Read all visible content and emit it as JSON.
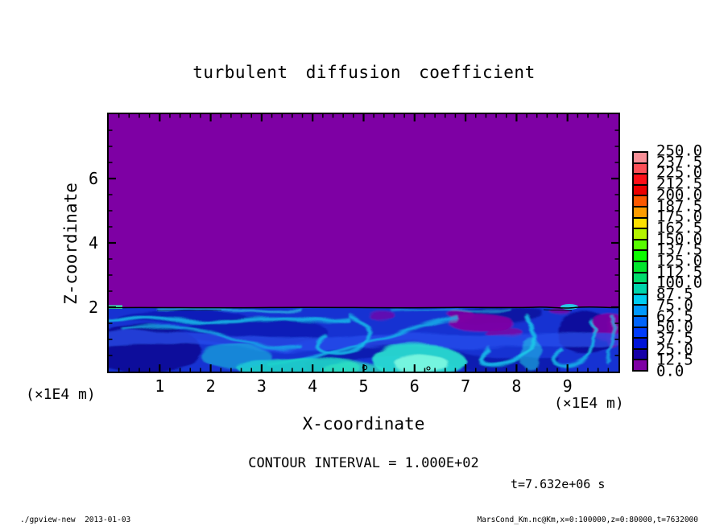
{
  "title": "turbulent diffusion coefficient",
  "axes": {
    "x": {
      "label": "X-coordinate",
      "units": "(×1E4 m)",
      "range": [
        0,
        10
      ],
      "ticks": [
        1,
        2,
        3,
        4,
        5,
        6,
        7,
        8,
        9
      ],
      "minor_step": 0.2
    },
    "y": {
      "label": "Z-coordinate",
      "units": "(×1E4 m)",
      "range": [
        0,
        8
      ],
      "ticks": [
        2,
        4,
        6
      ],
      "minor_step": 0.5
    }
  },
  "annotations": {
    "contour_interval": "CONTOUR INTERVAL = 1.000E+02",
    "time": "t=7.632e+06 s"
  },
  "footer": {
    "left": "./gpview-new  2013-01-03",
    "right": "MarsCond_Km.nc@Km,x=0:100000,z=0:80000,t=7632000"
  },
  "colorbar": {
    "labels_top_to_bottom": [
      "250.0",
      "237.5",
      "225.0",
      "212.5",
      "200.0",
      "187.5",
      "175.0",
      "162.5",
      "150.0",
      "137.5",
      "125.0",
      "112.5",
      "100.0",
      "87.5",
      "75.0",
      "62.5",
      "50.0",
      "37.5",
      "25.0",
      "12.5",
      "0.0"
    ],
    "colors_bottom_to_top": [
      "#7e00a4",
      "#1600a8",
      "#0014d8",
      "#003cfc",
      "#0064fc",
      "#0098fc",
      "#00ccf0",
      "#00d4ac",
      "#00dc6c",
      "#00e42c",
      "#0cfc00",
      "#58fc00",
      "#b4f400",
      "#fce000",
      "#fc9c00",
      "#fc5800",
      "#ec0000",
      "#fc1018",
      "#fc5058",
      "#f89098"
    ]
  },
  "chart_data": {
    "type": "heatmap",
    "title": "turbulent diffusion coefficient",
    "xlabel": "X-coordinate",
    "ylabel": "Z-coordinate",
    "x_units_scale": "(×1E4 m)",
    "y_units_scale": "(×1E4 m)",
    "xlim": [
      0,
      10
    ],
    "ylim": [
      0,
      8
    ],
    "x_ticks": [
      1,
      2,
      3,
      4,
      5,
      6,
      7,
      8,
      9
    ],
    "y_ticks": [
      2,
      4,
      6
    ],
    "colorbar_levels": [
      0,
      12.5,
      25,
      37.5,
      50,
      62.5,
      75,
      87.5,
      100,
      112.5,
      125,
      137.5,
      150,
      162.5,
      175,
      187.5,
      200,
      212.5,
      225,
      237.5,
      250
    ],
    "contour_interval": 100.0,
    "time_seconds": 7632000,
    "field_background_color": "#7e00a4",
    "field_description": "Uniform field ~0 (purple, 0-12.5 bin) for z above ~2x1E4 m; below z~2x1E4 m a turbulent boundary layer with swirling filaments: mostly blue (~25-60), dark navy and purple patches (~0-25, notably near x=5.6-6.4 and at the right edge), and bright cyan streaks/blobs (~75-100) near the bottom around x=2-3.5 and x=4.7-5.6; a black contour line (level 100) runs along the z~2x1E4 m interface."
  }
}
